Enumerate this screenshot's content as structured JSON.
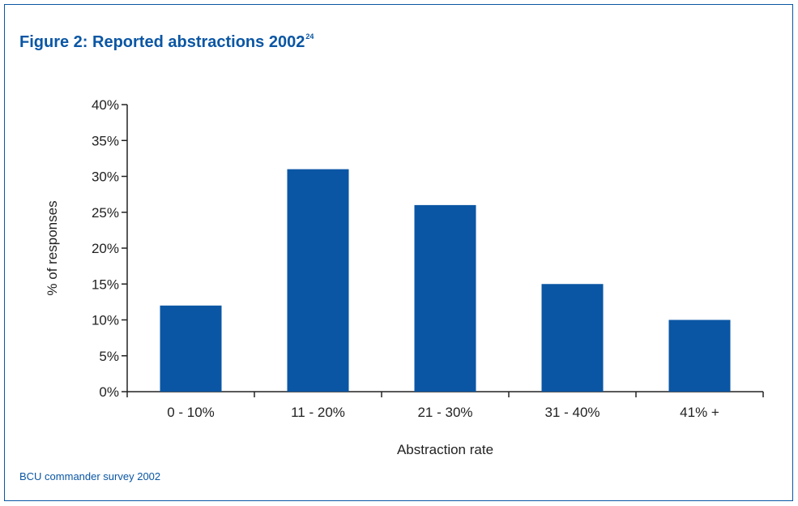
{
  "figure": {
    "title": "Figure 2: Reported abstractions 2002",
    "title_superscript": "24",
    "source": "BCU commander survey 2002",
    "accent_color": "#0a56a4"
  },
  "chart_data": {
    "type": "bar",
    "categories": [
      "0 - 10%",
      "11 - 20%",
      "21 - 30%",
      "31 - 40%",
      "41% +"
    ],
    "values": [
      12,
      31,
      26,
      15,
      10
    ],
    "unit": "%",
    "xlabel": "Abstraction rate",
    "ylabel": "% of responses",
    "ylim": [
      0,
      40
    ],
    "yticks": [
      0,
      5,
      10,
      15,
      20,
      25,
      30,
      35,
      40
    ],
    "ytick_labels": [
      "0%",
      "5%",
      "10%",
      "15%",
      "20%",
      "25%",
      "30%",
      "35%",
      "40%"
    ],
    "bar_color": "#0a56a4",
    "grid": false,
    "legend": "none"
  }
}
